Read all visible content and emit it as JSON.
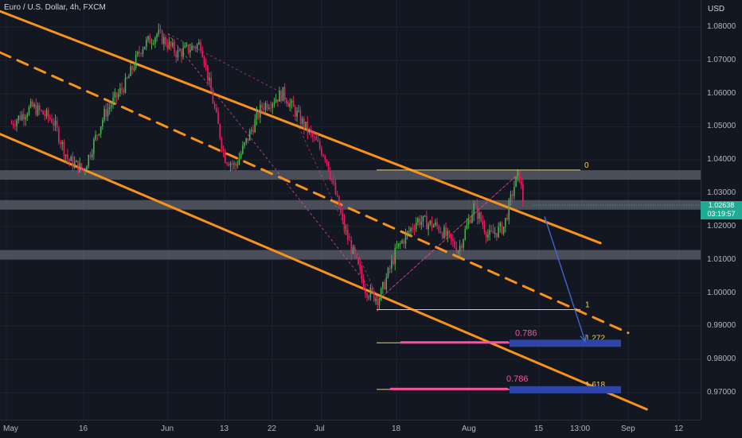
{
  "header": {
    "symbol_title": "Euro / U.S. Dollar, 4h, FXCM"
  },
  "price_axis": {
    "currency": "USD",
    "ticks": [
      "1.08000",
      "1.07000",
      "1.06000",
      "1.05000",
      "1.04000",
      "1.03000",
      "1.02000",
      "1.01000",
      "1.00000",
      "0.99000",
      "0.98000",
      "0.97000"
    ],
    "last_price": "1.02638",
    "countdown": "03:19:57"
  },
  "time_axis": {
    "labels": [
      "May",
      "16",
      "Jun",
      "13",
      "22",
      "Jul",
      "18",
      "Aug",
      "15",
      "13:00",
      "Sep",
      "12"
    ]
  },
  "colors": {
    "background": "#131722",
    "channel": "#f7931a",
    "bull": "#26a69a",
    "bear": "#ef5350",
    "bull_candle": "#4caf50",
    "bear_candle": "#e91e63",
    "zone": "#787b86",
    "fib_line": "#f2d14d",
    "fib_highlight": "#ff4fa3",
    "target_box": "#2d45a8",
    "projection": "#3b6ed9",
    "price_tag": "#22ab94"
  },
  "chart_data": {
    "type": "candlestick",
    "title": "Euro / U.S. Dollar, 4h, FXCM",
    "x_domain": [
      "May",
      "Sep 12"
    ],
    "ylim": [
      0.965,
      1.084
    ],
    "y_ticks": [
      1.08,
      1.07,
      1.06,
      1.05,
      1.04,
      1.03,
      1.02,
      1.01,
      1.0,
      0.99,
      0.98,
      0.97
    ],
    "price_path": [
      {
        "date": "May 2",
        "price": 1.051
      },
      {
        "date": "May 6",
        "price": 1.056
      },
      {
        "date": "May 10",
        "price": 1.052
      },
      {
        "date": "May 13",
        "price": 1.04
      },
      {
        "date": "May 16",
        "price": 1.037
      },
      {
        "date": "May 20",
        "price": 1.054
      },
      {
        "date": "May 24",
        "price": 1.063
      },
      {
        "date": "May 27",
        "price": 1.074
      },
      {
        "date": "May 30",
        "price": 1.078
      },
      {
        "date": "Jun 3",
        "price": 1.072
      },
      {
        "date": "Jun 8",
        "price": 1.075
      },
      {
        "date": "Jun 13",
        "price": 1.041
      },
      {
        "date": "Jun 15",
        "price": 1.038
      },
      {
        "date": "Jun 20",
        "price": 1.056
      },
      {
        "date": "Jun 24",
        "price": 1.06
      },
      {
        "date": "Jun 28",
        "price": 1.05
      },
      {
        "date": "Jul 2",
        "price": 1.041
      },
      {
        "date": "Jul 6",
        "price": 1.02
      },
      {
        "date": "Jul 11",
        "price": 1.001
      },
      {
        "date": "Jul 14",
        "price": 0.998
      },
      {
        "date": "Jul 18",
        "price": 1.013
      },
      {
        "date": "Jul 22",
        "price": 1.022
      },
      {
        "date": "Jul 26",
        "price": 1.02
      },
      {
        "date": "Jul 30",
        "price": 1.013
      },
      {
        "date": "Aug 2",
        "price": 1.026
      },
      {
        "date": "Aug 5",
        "price": 1.017
      },
      {
        "date": "Aug 8",
        "price": 1.02
      },
      {
        "date": "Aug 10",
        "price": 1.032
      },
      {
        "date": "Aug 11",
        "price": 1.036
      },
      {
        "date": "Aug 12",
        "price": 1.026
      }
    ],
    "last_price": 1.02638,
    "support_resistance_zones": [
      1.0355,
      1.0265,
      1.0115
    ],
    "descending_channel": {
      "upper": [
        {
          "date": "May",
          "price": 1.084
        },
        {
          "date": "Aug 26",
          "price": 1.015
        }
      ],
      "middle_dashed": [
        {
          "date": "May",
          "price": 1.0715
        },
        {
          "date": "Sep 1",
          "price": 0.988
        }
      ],
      "lower": [
        {
          "date": "May",
          "price": 1.047
        },
        {
          "date": "Sep 5",
          "price": 0.965
        }
      ]
    },
    "fib_extension": {
      "levels": [
        {
          "label": "0",
          "price": 1.037
        },
        {
          "label": "1",
          "price": 0.995
        },
        {
          "label": "1.272",
          "price": 0.985
        },
        {
          "label": "1.618",
          "price": 0.971
        }
      ],
      "highlight_labels": [
        "0.786",
        "0.786"
      ]
    },
    "target_boxes": [
      0.985,
      0.971
    ],
    "projection_arrow": {
      "from": 1.023,
      "to": 0.985
    }
  }
}
